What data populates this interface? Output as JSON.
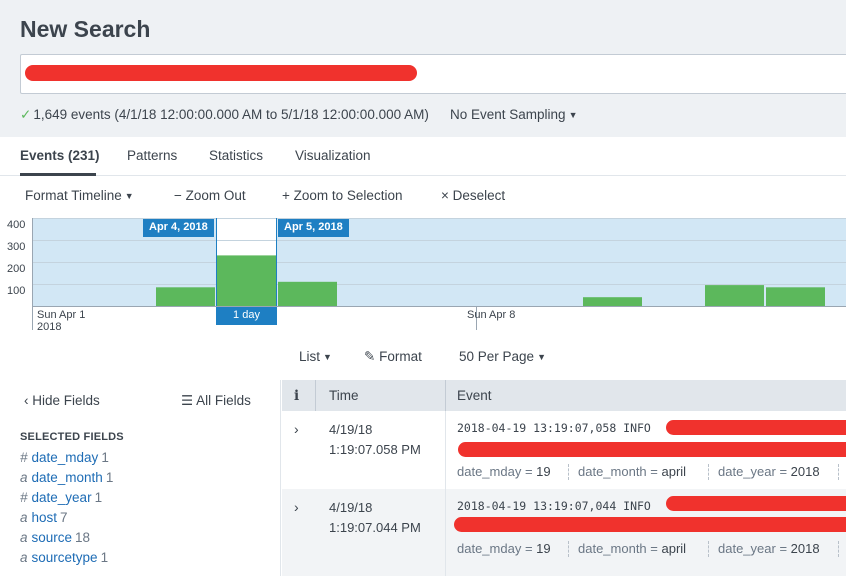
{
  "page": {
    "title": "New Search"
  },
  "status": {
    "events_summary": "1,649 events (4/1/18 12:00:00.000 AM to 5/1/18 12:00:00.000 AM)",
    "sampling": "No Event Sampling"
  },
  "tabs": [
    {
      "label": "Events (231)",
      "active": true
    },
    {
      "label": "Patterns",
      "active": false
    },
    {
      "label": "Statistics",
      "active": false
    },
    {
      "label": "Visualization",
      "active": false
    }
  ],
  "timeline_toolbar": {
    "format": "Format Timeline",
    "zoom_out": "Zoom Out",
    "zoom_selection": "Zoom to Selection",
    "deselect": "Deselect"
  },
  "colors": {
    "bar": "#5cb85c",
    "selection_bg": "#d2e7f5",
    "accent": "#1e7fc3",
    "redaction": "#f0322d"
  },
  "chart_data": {
    "type": "bar",
    "y_ticks": [
      "400",
      "300",
      "200",
      "100"
    ],
    "ylim": [
      0,
      400
    ],
    "categories": [
      "Apr 1",
      "Apr 2",
      "Apr 3",
      "Apr 4",
      "Apr 5",
      "Apr 6",
      "Apr 7",
      "Apr 8",
      "Apr 9",
      "Apr 10",
      "Apr 11",
      "Apr 12",
      "Apr 13",
      "Apr 14"
    ],
    "values": [
      0,
      0,
      85,
      230,
      110,
      0,
      0,
      0,
      0,
      40,
      0,
      95,
      85,
      0
    ],
    "selected_range": {
      "start": "Apr 4, 2018",
      "end": "Apr 5, 2018",
      "span": "1 day"
    },
    "x_labels": [
      {
        "line1": "Sun Apr 1",
        "line2": "2018"
      },
      {
        "line1": "Sun Apr 8",
        "line2": ""
      }
    ]
  },
  "list_controls": {
    "list": "List",
    "format": "Format",
    "per_page": "50 Per Page"
  },
  "sidebar": {
    "hide_fields": "Hide Fields",
    "all_fields": "All Fields",
    "selected_heading": "SELECTED FIELDS",
    "fields": [
      {
        "type": "#",
        "name": "date_mday",
        "count": "1"
      },
      {
        "type": "a",
        "name": "date_month",
        "count": "1"
      },
      {
        "type": "#",
        "name": "date_year",
        "count": "1"
      },
      {
        "type": "a",
        "name": "host",
        "count": "7"
      },
      {
        "type": "a",
        "name": "source",
        "count": "18"
      },
      {
        "type": "a",
        "name": "sourcetype",
        "count": "1"
      }
    ]
  },
  "table": {
    "headers": {
      "info": "i",
      "time": "Time",
      "event": "Event"
    },
    "rows": [
      {
        "date": "4/19/18",
        "time": "1:19:07.058 PM",
        "raw": "2018-04-19 13:19:07,058 INFO",
        "fields": [
          {
            "k": "date_mday",
            "v": "19"
          },
          {
            "k": "date_month",
            "v": "april"
          },
          {
            "k": "date_year",
            "v": "2018"
          }
        ]
      },
      {
        "date": "4/19/18",
        "time": "1:19:07.044 PM",
        "raw": "2018-04-19 13:19:07,044 INFO",
        "fields": [
          {
            "k": "date_mday",
            "v": "19"
          },
          {
            "k": "date_month",
            "v": "april"
          },
          {
            "k": "date_year",
            "v": "2018"
          }
        ]
      }
    ]
  }
}
